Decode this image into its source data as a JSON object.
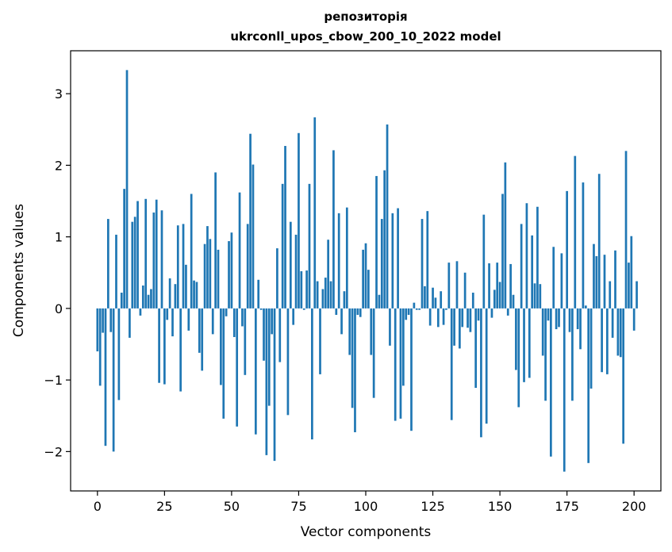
{
  "chart_data": {
    "type": "bar",
    "title_line1": "репозиторія",
    "title_line2": "ukrconll_upos_cbow_200_10_2022 model",
    "xlabel": "Vector components",
    "ylabel": "Components values",
    "xlim": [
      -10,
      210
    ],
    "ylim": [
      -2.55,
      3.6
    ],
    "x_ticks": [
      0,
      25,
      50,
      75,
      100,
      125,
      150,
      175,
      200
    ],
    "x_tick_labels": [
      "0",
      "25",
      "50",
      "75",
      "100",
      "125",
      "150",
      "175",
      "200"
    ],
    "y_ticks": [
      -2,
      -1,
      0,
      1,
      2,
      3
    ],
    "y_tick_labels": [
      "−2",
      "−1",
      "0",
      "1",
      "2",
      "3"
    ],
    "grid": false,
    "bar_color": "#1f77b4",
    "values": [
      -0.6,
      -1.08,
      -0.34,
      -1.92,
      1.25,
      -0.33,
      -2.0,
      1.03,
      -1.28,
      0.22,
      1.67,
      3.33,
      -0.41,
      1.21,
      1.28,
      1.5,
      -0.1,
      0.32,
      1.53,
      0.19,
      0.27,
      1.34,
      1.52,
      -1.04,
      1.37,
      -1.06,
      -0.16,
      0.42,
      -0.39,
      0.34,
      1.16,
      -1.16,
      1.18,
      0.61,
      -0.31,
      1.6,
      0.39,
      0.37,
      -0.62,
      -0.87,
      0.9,
      1.15,
      0.97,
      -0.36,
      1.9,
      0.82,
      -1.07,
      -1.54,
      -0.11,
      0.94,
      1.06,
      -0.4,
      -1.65,
      1.62,
      -0.25,
      -0.93,
      1.18,
      2.44,
      2.01,
      -1.76,
      0.4,
      -0.02,
      -0.73,
      -2.05,
      -1.36,
      -0.36,
      -2.13,
      0.84,
      -0.75,
      1.74,
      2.27,
      -1.49,
      1.21,
      -0.23,
      1.03,
      2.45,
      0.52,
      -0.02,
      0.53,
      1.74,
      -1.83,
      2.67,
      0.38,
      -0.92,
      0.27,
      0.43,
      0.96,
      0.38,
      2.21,
      -0.09,
      1.33,
      -0.36,
      0.24,
      1.41,
      -0.65,
      -1.39,
      -1.73,
      -0.09,
      -0.12,
      0.82,
      0.91,
      0.54,
      -0.65,
      -1.25,
      1.85,
      0.19,
      1.25,
      1.93,
      2.57,
      -0.52,
      1.33,
      -1.57,
      1.4,
      -1.54,
      -1.08,
      -0.16,
      -0.09,
      -1.71,
      0.08,
      -0.02,
      -0.02,
      1.25,
      0.31,
      1.36,
      -0.24,
      0.29,
      0.15,
      -0.26,
      0.24,
      -0.23,
      -0.02,
      0.64,
      -1.56,
      -0.52,
      0.66,
      -0.56,
      -0.26,
      0.5,
      -0.27,
      -0.33,
      0.22,
      -1.11,
      -0.17,
      -1.8,
      1.31,
      -1.61,
      0.63,
      -0.13,
      0.26,
      0.64,
      0.37,
      1.6,
      2.04,
      -0.1,
      0.62,
      0.19,
      -0.86,
      -1.38,
      1.18,
      -1.03,
      1.47,
      -0.97,
      1.02,
      0.35,
      1.42,
      0.34,
      -0.66,
      -1.29,
      -0.17,
      -2.07,
      0.86,
      -0.29,
      -0.26,
      0.77,
      -2.28,
      1.64,
      -0.33,
      -1.29,
      2.13,
      -0.29,
      -0.57,
      1.76,
      0.04,
      -2.16,
      -1.12,
      0.9,
      0.73,
      1.88,
      -0.89,
      0.75,
      -0.92,
      0.38,
      -0.41,
      0.81,
      -0.66,
      -0.68,
      -1.89,
      2.2,
      0.64,
      1.01,
      -0.31,
      0.38
    ]
  }
}
